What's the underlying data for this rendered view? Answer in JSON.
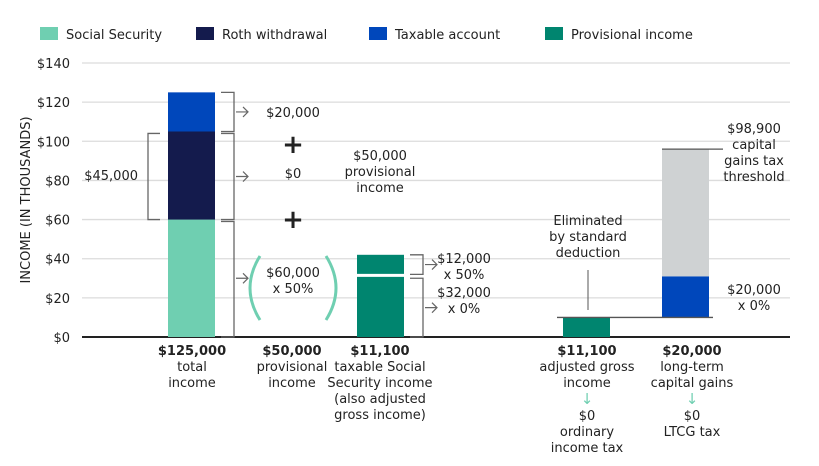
{
  "chart_data": {
    "type": "bar",
    "stacked": true,
    "ylabel": "INCOME (IN THOUSANDS)",
    "ylim": [
      0,
      140
    ],
    "yticks": [
      "$0",
      "$20",
      "$40",
      "$60",
      "$80",
      "$100",
      "$120",
      "$140"
    ],
    "grid": true,
    "legend_position": "top",
    "legend": [
      {
        "name": "Social Security",
        "color": "#6fcfb1"
      },
      {
        "name": "Roth withdrawal",
        "color": "#141b4d"
      },
      {
        "name": "Taxable account",
        "color": "#0047bb"
      },
      {
        "name": "Provisional income",
        "color": "#00856f"
      }
    ],
    "bars": [
      {
        "category_value": "$125,000",
        "category_label": [
          "total",
          "income"
        ],
        "segments": [
          {
            "from": 0,
            "to": 60,
            "color": "#6fcfb1"
          },
          {
            "from": 60,
            "to": 105,
            "color": "#141b4d"
          },
          {
            "from": 105,
            "to": 125,
            "color": "#0047bb"
          }
        ]
      },
      {
        "category_value": "$50,000",
        "category_label": [
          "provisional",
          "income"
        ],
        "segments": []
      },
      {
        "category_value": "$11,100",
        "category_label": [
          "taxable Social",
          "Security income",
          "(also adjusted",
          "gross income)"
        ],
        "segments": [
          {
            "from": 0,
            "to": 31,
            "color": "#00856f"
          },
          {
            "from": 31,
            "to": 42,
            "color": "#00856f"
          }
        ]
      },
      {
        "category_value": "$11,100",
        "category_label": [
          "adjusted gross",
          "income"
        ],
        "result": [
          "$0",
          "ordinary",
          "income tax"
        ],
        "segments": [
          {
            "from": 0,
            "to": 10,
            "color": "#00856f"
          }
        ]
      },
      {
        "category_value": "$20,000",
        "category_label": [
          "long-term",
          "capital gains"
        ],
        "result": [
          "$0",
          "LTCG tax"
        ],
        "segments": [
          {
            "from": 10,
            "to": 31,
            "color": "#0047bb"
          },
          {
            "from": 31,
            "to": 96,
            "color": "#cfd2d3"
          }
        ]
      }
    ],
    "annotations": {
      "taxable_part": "$20,000",
      "roth_part": "$0",
      "roth_bracket": "$45,000",
      "ss_part": [
        "$60,000",
        "x 50%"
      ],
      "provisional_sum": [
        "$50,000",
        "provisional",
        "income"
      ],
      "upper_part": [
        "$12,000",
        "x 50%"
      ],
      "lower_part": [
        "$32,000",
        "x 0%"
      ],
      "eliminated": [
        "Eliminated",
        "by standard",
        "deduction"
      ],
      "threshold": [
        "$98,900",
        "capital",
        "gains tax",
        "threshold"
      ],
      "ltcg_rate": [
        "$20,000",
        "x 0%"
      ],
      "plus": "+"
    }
  }
}
